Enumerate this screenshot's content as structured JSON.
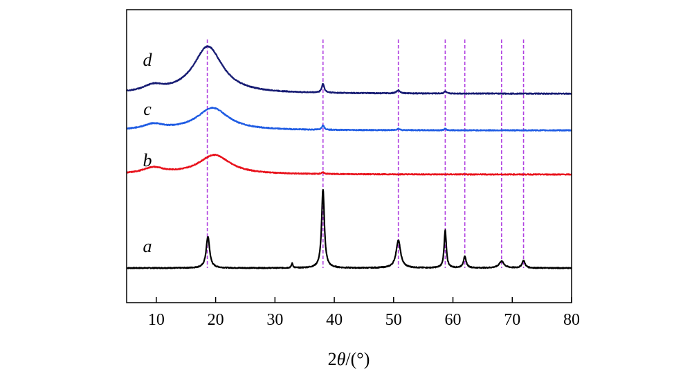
{
  "chart_data": {
    "type": "line",
    "xlabel_parts": [
      "2",
      "θ",
      "/(°)"
    ],
    "ylabel": "",
    "xlim": [
      5,
      80
    ],
    "xticks": [
      10,
      20,
      30,
      40,
      50,
      60,
      70,
      80
    ],
    "grid": false,
    "legend": "none",
    "reference_lines": {
      "x": [
        18.6,
        38.1,
        50.8,
        58.7,
        62.0,
        68.2,
        71.9
      ],
      "color": "#b040e0",
      "style": "dashed"
    },
    "series": [
      {
        "name": "a",
        "color": "#000000",
        "baseline": 0,
        "peaks": [
          {
            "x": 18.7,
            "height": 0.42,
            "width": 0.35
          },
          {
            "x": 32.9,
            "height": 0.06,
            "width": 0.15
          },
          {
            "x": 38.1,
            "height": 1.05,
            "width": 0.28
          },
          {
            "x": 50.8,
            "height": 0.37,
            "width": 0.45
          },
          {
            "x": 58.7,
            "height": 0.5,
            "width": 0.22
          },
          {
            "x": 62.0,
            "height": 0.15,
            "width": 0.28
          },
          {
            "x": 68.2,
            "height": 0.09,
            "width": 0.5
          },
          {
            "x": 71.9,
            "height": 0.1,
            "width": 0.3
          }
        ]
      },
      {
        "name": "b",
        "color": "#e8111b",
        "baseline": 1.25,
        "peaks": [
          {
            "x": 9.5,
            "height": 0.08,
            "width": 2.2
          },
          {
            "x": 19.8,
            "height": 0.26,
            "width": 3.2
          },
          {
            "x": 38.1,
            "height": 0.02,
            "width": 0.3
          }
        ]
      },
      {
        "name": "c",
        "color": "#1e5be3",
        "baseline": 1.84,
        "peaks": [
          {
            "x": 9.5,
            "height": 0.07,
            "width": 2.0
          },
          {
            "x": 19.5,
            "height": 0.3,
            "width": 3.2
          },
          {
            "x": 38.1,
            "height": 0.06,
            "width": 0.25
          },
          {
            "x": 50.8,
            "height": 0.02,
            "width": 0.3
          },
          {
            "x": 58.7,
            "height": 0.02,
            "width": 0.2
          }
        ]
      },
      {
        "name": "d",
        "color": "#151a72",
        "baseline": 2.33,
        "peaks": [
          {
            "x": 9.5,
            "height": 0.08,
            "width": 2.0
          },
          {
            "x": 18.7,
            "height": 0.63,
            "width": 3.0
          },
          {
            "x": 38.1,
            "height": 0.12,
            "width": 0.25
          },
          {
            "x": 50.8,
            "height": 0.04,
            "width": 0.35
          },
          {
            "x": 58.7,
            "height": 0.03,
            "width": 0.2
          }
        ]
      }
    ]
  }
}
